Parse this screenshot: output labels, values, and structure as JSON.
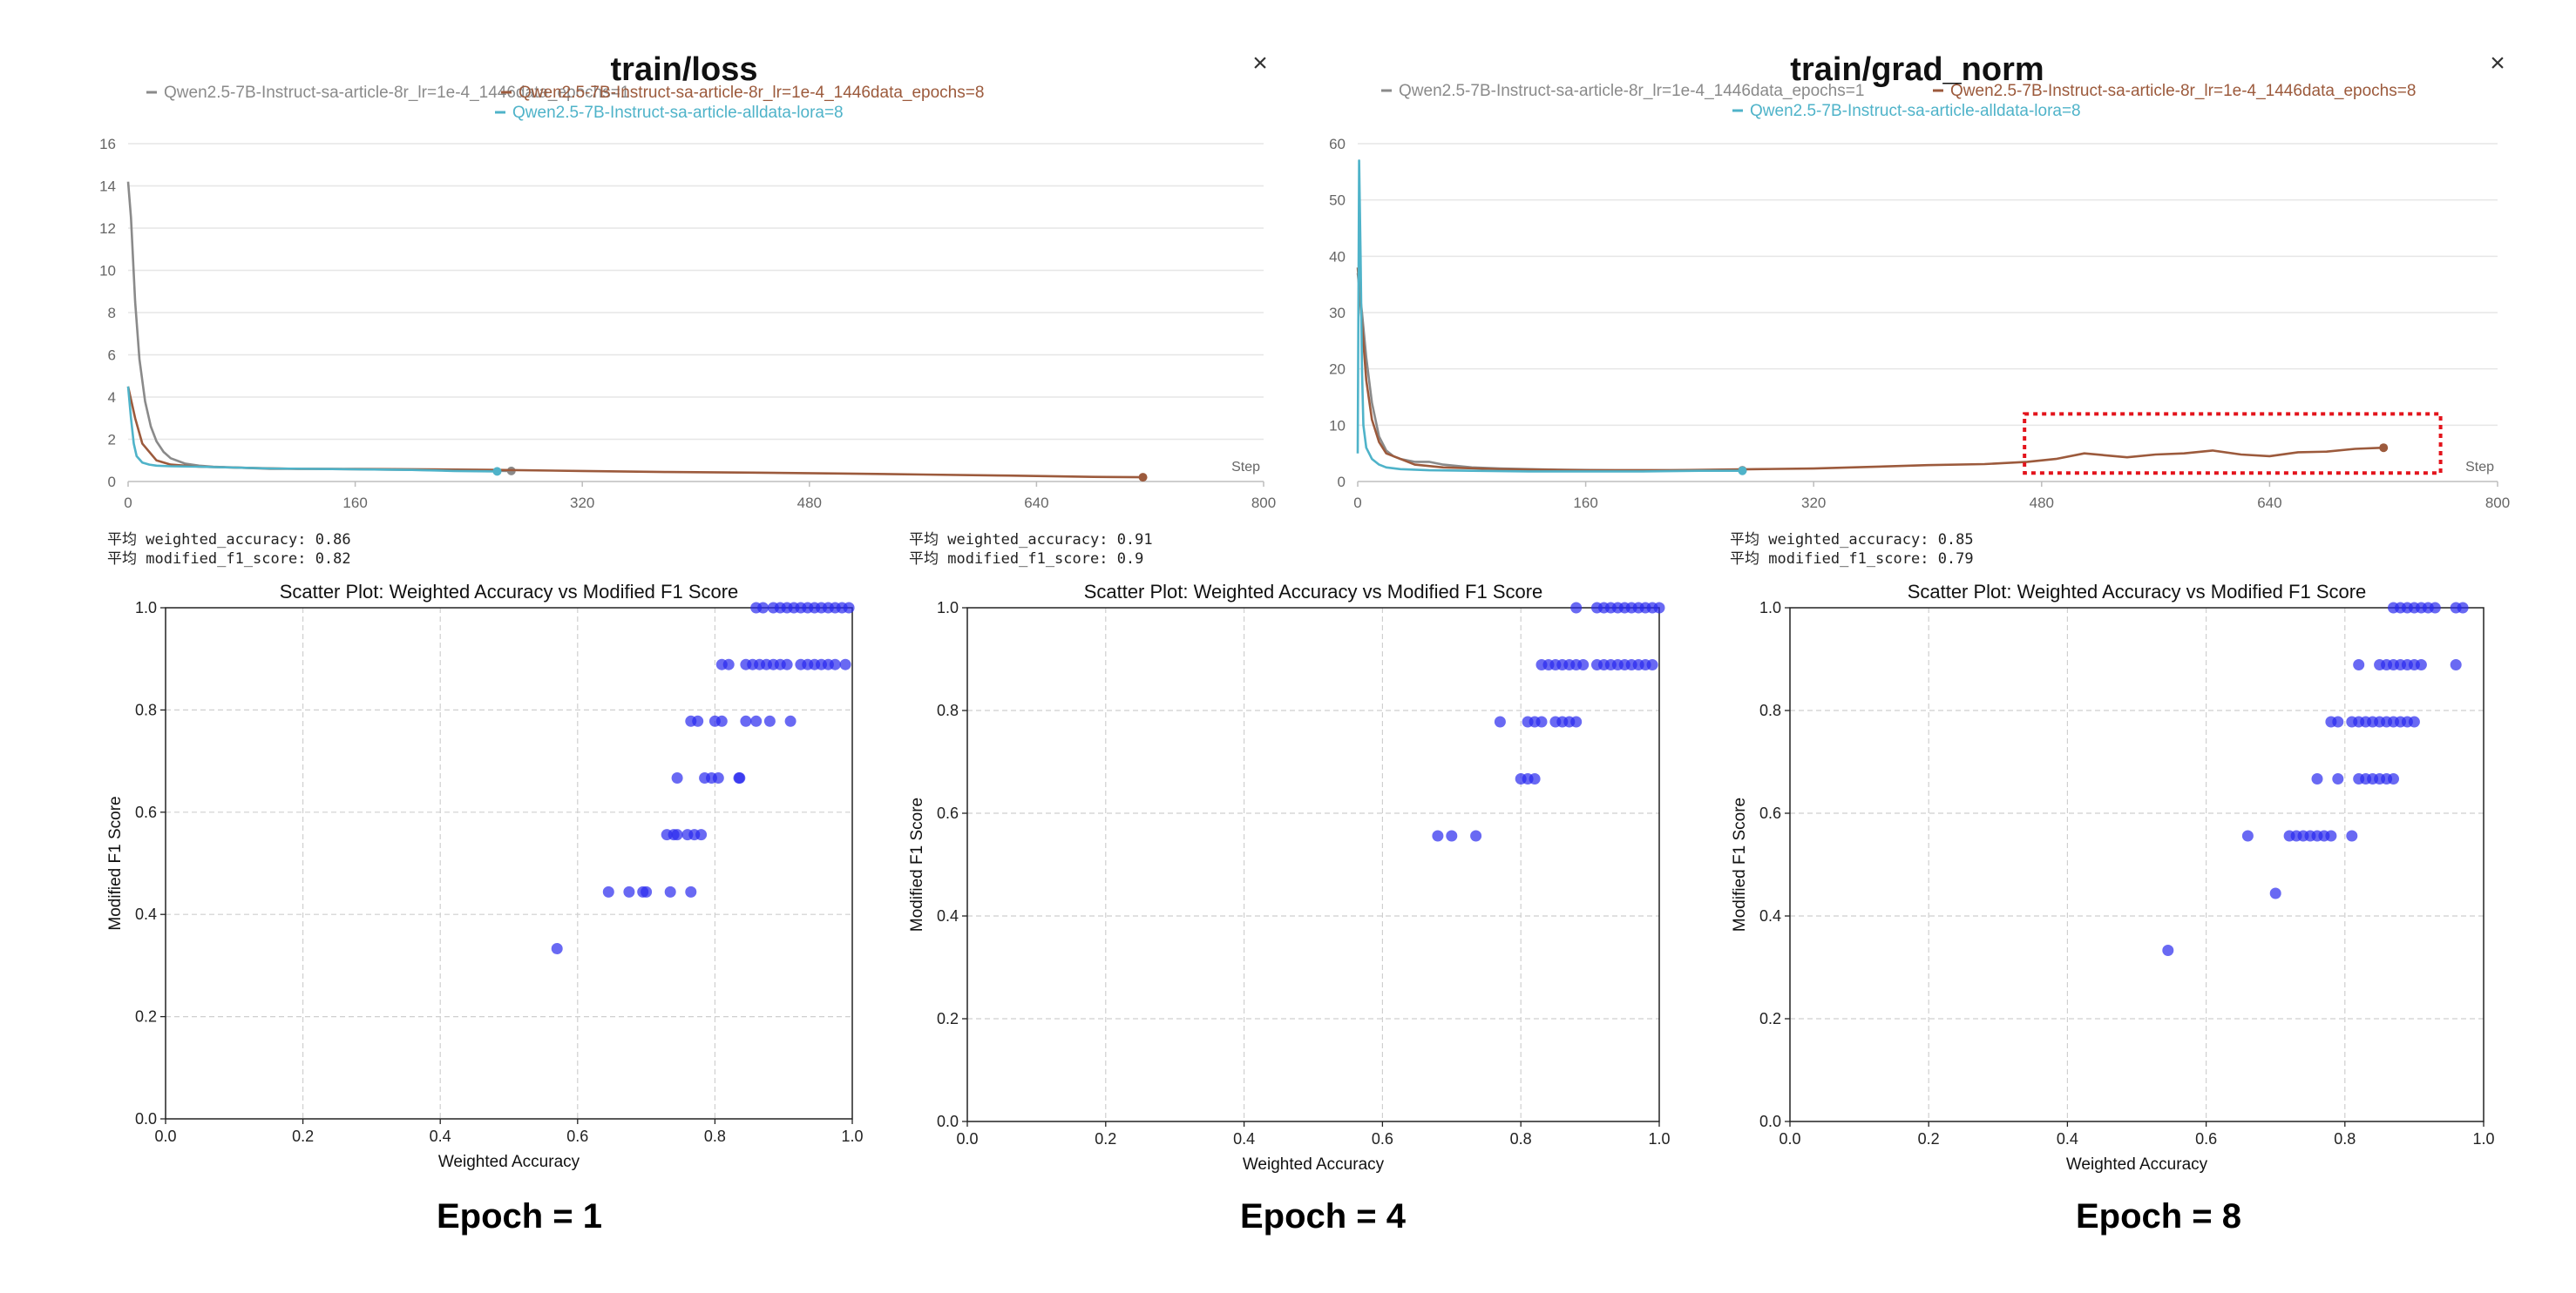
{
  "chart_data": [
    {
      "type": "line",
      "title": "train/loss",
      "xlabel": "Step",
      "ylabel": "",
      "xlim": [
        0,
        800
      ],
      "ylim": [
        0,
        16
      ],
      "x_ticks": [
        0,
        160,
        320,
        480,
        640,
        800
      ],
      "y_ticks": [
        0,
        2,
        4,
        6,
        8,
        10,
        12,
        14,
        16
      ],
      "grid": true,
      "legend": "top",
      "close_label": "×",
      "series": [
        {
          "name": "Qwen2.5-7B-Instruct-sa-article-8r_lr=1e-4_1446data_epochs=1",
          "color": "#8a8a8a",
          "x": [
            0,
            2,
            5,
            8,
            12,
            16,
            20,
            25,
            30,
            40,
            50,
            60,
            80,
            100,
            130,
            160,
            200,
            240,
            270
          ],
          "y": [
            14.2,
            12.5,
            8.5,
            5.8,
            3.8,
            2.6,
            1.9,
            1.4,
            1.1,
            0.85,
            0.75,
            0.7,
            0.65,
            0.6,
            0.6,
            0.58,
            0.55,
            0.52,
            0.5
          ]
        },
        {
          "name": "Qwen2.5-7B-Instruct-sa-article-8r_lr=1e-4_1446data_epochs=8",
          "color": "#9c5a3c",
          "x": [
            0,
            5,
            10,
            20,
            30,
            50,
            80,
            120,
            160,
            200,
            260,
            320,
            380,
            440,
            500,
            560,
            620,
            680,
            715
          ],
          "y": [
            4.5,
            3.0,
            1.8,
            1.0,
            0.8,
            0.7,
            0.65,
            0.6,
            0.6,
            0.58,
            0.55,
            0.5,
            0.45,
            0.42,
            0.38,
            0.33,
            0.28,
            0.22,
            0.2
          ]
        },
        {
          "name": "Qwen2.5-7B-Instruct-sa-article-alldata-lora=8",
          "color": "#4fb3c9",
          "x": [
            0,
            2,
            4,
            6,
            10,
            15,
            20,
            30,
            50,
            80,
            100,
            130,
            160,
            200,
            230,
            260
          ],
          "y": [
            4.5,
            3.0,
            1.8,
            1.2,
            0.9,
            0.8,
            0.75,
            0.72,
            0.7,
            0.65,
            0.62,
            0.6,
            0.58,
            0.55,
            0.5,
            0.48
          ]
        }
      ]
    },
    {
      "type": "line",
      "title": "train/grad_norm",
      "xlabel": "Step",
      "ylabel": "",
      "xlim": [
        0,
        800
      ],
      "ylim": [
        0,
        60
      ],
      "x_ticks": [
        0,
        160,
        320,
        480,
        640,
        800
      ],
      "y_ticks": [
        0,
        10,
        20,
        30,
        40,
        50,
        60
      ],
      "grid": true,
      "legend": "top",
      "close_label": "×",
      "series": [
        {
          "name": "Qwen2.5-7B-Instruct-sa-article-8r_lr=1e-4_1446data_epochs=1",
          "color": "#8a8a8a",
          "x": [
            0,
            3,
            6,
            10,
            15,
            20,
            25,
            30,
            40,
            50,
            60,
            80,
            100,
            140,
            180,
            220,
            270
          ],
          "y": [
            37,
            30,
            22,
            14,
            8,
            5.5,
            4.5,
            4,
            3.5,
            3.5,
            3,
            2.5,
            2.3,
            2.1,
            2,
            2,
            2
          ]
        },
        {
          "name": "Qwen2.5-7B-Instruct-sa-article-8r_lr=1e-4_1446data_epochs=8",
          "color": "#9c5a3c",
          "x": [
            0,
            3,
            6,
            10,
            15,
            20,
            30,
            40,
            60,
            100,
            160,
            220,
            280,
            320,
            360,
            400,
            440,
            470,
            490,
            510,
            540,
            560,
            580,
            600,
            620,
            640,
            660,
            680,
            700,
            720
          ],
          "y": [
            38,
            28,
            18,
            11,
            7,
            5,
            4,
            3,
            2.5,
            2.2,
            2,
            2,
            2.2,
            2.3,
            2.6,
            2.9,
            3.1,
            3.5,
            4,
            5,
            4.3,
            4.8,
            5,
            5.5,
            4.8,
            4.5,
            5.2,
            5.3,
            5.8,
            6
          ]
        },
        {
          "name": "Qwen2.5-7B-Instruct-sa-article-alldata-lora=8",
          "color": "#4fb3c9",
          "x": [
            0,
            1,
            2,
            3,
            4,
            6,
            10,
            15,
            20,
            30,
            50,
            80,
            120,
            160,
            200,
            240,
            270
          ],
          "y": [
            5,
            57,
            40,
            20,
            10,
            6,
            4,
            3,
            2.5,
            2.2,
            2,
            1.9,
            1.8,
            1.8,
            1.8,
            1.9,
            1.9
          ]
        }
      ]
    },
    {
      "type": "scatter",
      "title": "Scatter Plot: Weighted Accuracy vs Modified F1 Score",
      "xlabel": "Weighted Accuracy",
      "ylabel": "Modified F1 Score",
      "xlim": [
        0.0,
        1.0
      ],
      "ylim": [
        0.0,
        1.0
      ],
      "ticks": [
        "0.0",
        "0.2",
        "0.4",
        "0.6",
        "0.8",
        "1.0"
      ],
      "grid": true,
      "color": "#2a2aee",
      "stats": [
        "平均 weighted_accuracy: 0.86",
        "平均 modified_f1_score: 0.82"
      ],
      "caption": "Epoch = 1",
      "points": [
        [
          0.57,
          0.333
        ],
        [
          0.645,
          0.444
        ],
        [
          0.675,
          0.444
        ],
        [
          0.695,
          0.444
        ],
        [
          0.7,
          0.444
        ],
        [
          0.735,
          0.444
        ],
        [
          0.765,
          0.444
        ],
        [
          0.73,
          0.556
        ],
        [
          0.74,
          0.556
        ],
        [
          0.745,
          0.556
        ],
        [
          0.76,
          0.556
        ],
        [
          0.77,
          0.556
        ],
        [
          0.78,
          0.556
        ],
        [
          0.745,
          0.667
        ],
        [
          0.785,
          0.667
        ],
        [
          0.795,
          0.667
        ],
        [
          0.805,
          0.667
        ],
        [
          0.835,
          0.667
        ],
        [
          0.836,
          0.667
        ],
        [
          0.765,
          0.778
        ],
        [
          0.775,
          0.778
        ],
        [
          0.8,
          0.778
        ],
        [
          0.81,
          0.778
        ],
        [
          0.845,
          0.778
        ],
        [
          0.86,
          0.778
        ],
        [
          0.88,
          0.778
        ],
        [
          0.91,
          0.778
        ],
        [
          0.81,
          0.889
        ],
        [
          0.82,
          0.889
        ],
        [
          0.845,
          0.889
        ],
        [
          0.855,
          0.889
        ],
        [
          0.865,
          0.889
        ],
        [
          0.875,
          0.889
        ],
        [
          0.885,
          0.889
        ],
        [
          0.895,
          0.889
        ],
        [
          0.905,
          0.889
        ],
        [
          0.925,
          0.889
        ],
        [
          0.935,
          0.889
        ],
        [
          0.945,
          0.889
        ],
        [
          0.955,
          0.889
        ],
        [
          0.965,
          0.889
        ],
        [
          0.975,
          0.889
        ],
        [
          0.99,
          0.889
        ],
        [
          0.86,
          1.0
        ],
        [
          0.87,
          1.0
        ],
        [
          0.885,
          1.0
        ],
        [
          0.895,
          1.0
        ],
        [
          0.905,
          1.0
        ],
        [
          0.915,
          1.0
        ],
        [
          0.925,
          1.0
        ],
        [
          0.935,
          1.0
        ],
        [
          0.945,
          1.0
        ],
        [
          0.955,
          1.0
        ],
        [
          0.965,
          1.0
        ],
        [
          0.975,
          1.0
        ],
        [
          0.985,
          1.0
        ],
        [
          0.995,
          1.0
        ]
      ]
    },
    {
      "type": "scatter",
      "title": "Scatter Plot: Weighted Accuracy vs Modified F1 Score",
      "xlabel": "Weighted Accuracy",
      "ylabel": "Modified F1 Score",
      "xlim": [
        0.0,
        1.0
      ],
      "ylim": [
        0.0,
        1.0
      ],
      "ticks": [
        "0.0",
        "0.2",
        "0.4",
        "0.6",
        "0.8",
        "1.0"
      ],
      "grid": true,
      "color": "#2a2aee",
      "stats": [
        "平均 weighted_accuracy: 0.91",
        "平均 modified_f1_score: 0.9"
      ],
      "caption": "Epoch = 4",
      "points": [
        [
          0.68,
          0.556
        ],
        [
          0.7,
          0.556
        ],
        [
          0.735,
          0.556
        ],
        [
          0.8,
          0.667
        ],
        [
          0.81,
          0.667
        ],
        [
          0.82,
          0.667
        ],
        [
          0.77,
          0.778
        ],
        [
          0.81,
          0.778
        ],
        [
          0.82,
          0.778
        ],
        [
          0.83,
          0.778
        ],
        [
          0.85,
          0.778
        ],
        [
          0.86,
          0.778
        ],
        [
          0.87,
          0.778
        ],
        [
          0.88,
          0.778
        ],
        [
          0.83,
          0.889
        ],
        [
          0.84,
          0.889
        ],
        [
          0.85,
          0.889
        ],
        [
          0.86,
          0.889
        ],
        [
          0.87,
          0.889
        ],
        [
          0.88,
          0.889
        ],
        [
          0.89,
          0.889
        ],
        [
          0.91,
          0.889
        ],
        [
          0.92,
          0.889
        ],
        [
          0.93,
          0.889
        ],
        [
          0.94,
          0.889
        ],
        [
          0.95,
          0.889
        ],
        [
          0.96,
          0.889
        ],
        [
          0.97,
          0.889
        ],
        [
          0.98,
          0.889
        ],
        [
          0.99,
          0.889
        ],
        [
          0.88,
          1.0
        ],
        [
          0.91,
          1.0
        ],
        [
          0.92,
          1.0
        ],
        [
          0.93,
          1.0
        ],
        [
          0.94,
          1.0
        ],
        [
          0.95,
          1.0
        ],
        [
          0.96,
          1.0
        ],
        [
          0.97,
          1.0
        ],
        [
          0.98,
          1.0
        ],
        [
          0.99,
          1.0
        ],
        [
          1.0,
          1.0
        ]
      ]
    },
    {
      "type": "scatter",
      "title": "Scatter Plot: Weighted Accuracy vs Modified F1 Score",
      "xlabel": "Weighted Accuracy",
      "ylabel": "Modified F1 Score",
      "xlim": [
        0.0,
        1.0
      ],
      "ylim": [
        0.0,
        1.0
      ],
      "ticks": [
        "0.0",
        "0.2",
        "0.4",
        "0.6",
        "0.8",
        "1.0"
      ],
      "grid": true,
      "color": "#2a2aee",
      "stats": [
        "平均 weighted_accuracy: 0.85",
        "平均 modified_f1_score: 0.79"
      ],
      "caption": "Epoch = 8",
      "points": [
        [
          0.545,
          0.333
        ],
        [
          0.7,
          0.444
        ],
        [
          0.66,
          0.556
        ],
        [
          0.72,
          0.556
        ],
        [
          0.73,
          0.556
        ],
        [
          0.74,
          0.556
        ],
        [
          0.75,
          0.556
        ],
        [
          0.76,
          0.556
        ],
        [
          0.77,
          0.556
        ],
        [
          0.78,
          0.556
        ],
        [
          0.81,
          0.556
        ],
        [
          0.76,
          0.667
        ],
        [
          0.79,
          0.667
        ],
        [
          0.82,
          0.667
        ],
        [
          0.83,
          0.667
        ],
        [
          0.84,
          0.667
        ],
        [
          0.85,
          0.667
        ],
        [
          0.86,
          0.667
        ],
        [
          0.87,
          0.667
        ],
        [
          0.78,
          0.778
        ],
        [
          0.79,
          0.778
        ],
        [
          0.81,
          0.778
        ],
        [
          0.82,
          0.778
        ],
        [
          0.83,
          0.778
        ],
        [
          0.84,
          0.778
        ],
        [
          0.85,
          0.778
        ],
        [
          0.86,
          0.778
        ],
        [
          0.87,
          0.778
        ],
        [
          0.88,
          0.778
        ],
        [
          0.89,
          0.778
        ],
        [
          0.9,
          0.778
        ],
        [
          0.82,
          0.889
        ],
        [
          0.85,
          0.889
        ],
        [
          0.86,
          0.889
        ],
        [
          0.87,
          0.889
        ],
        [
          0.88,
          0.889
        ],
        [
          0.89,
          0.889
        ],
        [
          0.9,
          0.889
        ],
        [
          0.91,
          0.889
        ],
        [
          0.96,
          0.889
        ],
        [
          0.87,
          1.0
        ],
        [
          0.88,
          1.0
        ],
        [
          0.89,
          1.0
        ],
        [
          0.9,
          1.0
        ],
        [
          0.91,
          1.0
        ],
        [
          0.92,
          1.0
        ],
        [
          0.93,
          1.0
        ],
        [
          0.96,
          1.0
        ],
        [
          0.97,
          1.0
        ]
      ]
    }
  ]
}
